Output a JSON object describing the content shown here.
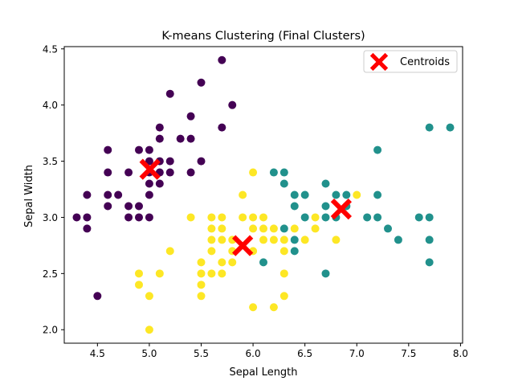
{
  "chart_data": {
    "type": "scatter",
    "title": "K-means Clustering (Final Clusters)",
    "xlabel": "Sepal Length",
    "ylabel": "Sepal Width",
    "xlim": [
      4.18,
      8.02
    ],
    "ylim": [
      1.88,
      4.52
    ],
    "xticks": [
      4.5,
      5.0,
      5.5,
      6.0,
      6.5,
      7.0,
      7.5,
      8.0
    ],
    "xtick_labels": [
      "4.5",
      "5.0",
      "5.5",
      "6.0",
      "6.5",
      "7.0",
      "7.5",
      "8.0"
    ],
    "yticks": [
      2.0,
      2.5,
      3.0,
      3.5,
      4.0,
      4.5
    ],
    "ytick_labels": [
      "2.0",
      "2.5",
      "3.0",
      "3.5",
      "4.0",
      "4.5"
    ],
    "grid": false,
    "legend": {
      "position": "top-right",
      "entries": [
        "Centroids"
      ]
    },
    "series": [
      {
        "color": "#440154",
        "points": [
          [
            4.3,
            3.0
          ],
          [
            4.4,
            2.9
          ],
          [
            4.4,
            3.0
          ],
          [
            4.4,
            3.2
          ],
          [
            4.5,
            2.3
          ],
          [
            4.6,
            3.1
          ],
          [
            4.6,
            3.2
          ],
          [
            4.6,
            3.4
          ],
          [
            4.6,
            3.6
          ],
          [
            4.7,
            3.2
          ],
          [
            4.8,
            3.0
          ],
          [
            4.8,
            3.1
          ],
          [
            4.8,
            3.4
          ],
          [
            4.9,
            3.0
          ],
          [
            4.9,
            3.1
          ],
          [
            4.9,
            3.6
          ],
          [
            5.0,
            3.0
          ],
          [
            5.0,
            3.2
          ],
          [
            5.0,
            3.3
          ],
          [
            5.0,
            3.4
          ],
          [
            5.0,
            3.5
          ],
          [
            5.0,
            3.6
          ],
          [
            5.1,
            3.3
          ],
          [
            5.1,
            3.4
          ],
          [
            5.1,
            3.5
          ],
          [
            5.1,
            3.7
          ],
          [
            5.1,
            3.8
          ],
          [
            5.2,
            3.4
          ],
          [
            5.2,
            3.5
          ],
          [
            5.2,
            4.1
          ],
          [
            5.3,
            3.7
          ],
          [
            5.4,
            3.4
          ],
          [
            5.4,
            3.7
          ],
          [
            5.4,
            3.9
          ],
          [
            5.5,
            3.5
          ],
          [
            5.5,
            4.2
          ],
          [
            5.7,
            3.8
          ],
          [
            5.7,
            4.4
          ],
          [
            5.8,
            4.0
          ]
        ]
      },
      {
        "color": "#21918c",
        "points": [
          [
            6.1,
            2.6
          ],
          [
            6.2,
            3.4
          ],
          [
            6.3,
            2.9
          ],
          [
            6.3,
            3.3
          ],
          [
            6.3,
            3.4
          ],
          [
            6.4,
            2.7
          ],
          [
            6.4,
            2.8
          ],
          [
            6.4,
            3.1
          ],
          [
            6.4,
            3.2
          ],
          [
            6.5,
            3.0
          ],
          [
            6.5,
            3.2
          ],
          [
            6.7,
            2.5
          ],
          [
            6.7,
            3.0
          ],
          [
            6.7,
            3.1
          ],
          [
            6.7,
            3.3
          ],
          [
            6.8,
            3.0
          ],
          [
            6.8,
            3.2
          ],
          [
            6.9,
            3.1
          ],
          [
            6.9,
            3.2
          ],
          [
            7.1,
            3.0
          ],
          [
            7.2,
            3.0
          ],
          [
            7.2,
            3.2
          ],
          [
            7.2,
            3.6
          ],
          [
            7.3,
            2.9
          ],
          [
            7.4,
            2.8
          ],
          [
            7.6,
            3.0
          ],
          [
            7.7,
            2.6
          ],
          [
            7.7,
            2.8
          ],
          [
            7.7,
            3.0
          ],
          [
            7.7,
            3.8
          ],
          [
            7.9,
            3.8
          ]
        ]
      },
      {
        "color": "#fde725",
        "points": [
          [
            4.9,
            2.4
          ],
          [
            4.9,
            2.5
          ],
          [
            5.0,
            2.0
          ],
          [
            5.0,
            2.3
          ],
          [
            5.1,
            2.5
          ],
          [
            5.2,
            2.7
          ],
          [
            5.4,
            3.0
          ],
          [
            5.5,
            2.3
          ],
          [
            5.5,
            2.4
          ],
          [
            5.5,
            2.5
          ],
          [
            5.5,
            2.6
          ],
          [
            5.6,
            2.5
          ],
          [
            5.6,
            2.7
          ],
          [
            5.6,
            2.8
          ],
          [
            5.6,
            2.9
          ],
          [
            5.6,
            3.0
          ],
          [
            5.7,
            2.5
          ],
          [
            5.7,
            2.6
          ],
          [
            5.7,
            2.8
          ],
          [
            5.7,
            2.9
          ],
          [
            5.7,
            3.0
          ],
          [
            5.8,
            2.6
          ],
          [
            5.8,
            2.7
          ],
          [
            5.8,
            2.8
          ],
          [
            5.9,
            3.0
          ],
          [
            5.9,
            3.2
          ],
          [
            6.0,
            2.2
          ],
          [
            6.0,
            2.7
          ],
          [
            6.0,
            2.9
          ],
          [
            6.0,
            3.0
          ],
          [
            6.0,
            3.4
          ],
          [
            6.1,
            2.8
          ],
          [
            6.1,
            2.9
          ],
          [
            6.1,
            3.0
          ],
          [
            6.2,
            2.2
          ],
          [
            6.2,
            2.8
          ],
          [
            6.2,
            2.9
          ],
          [
            6.3,
            2.3
          ],
          [
            6.3,
            2.5
          ],
          [
            6.3,
            2.7
          ],
          [
            6.3,
            2.8
          ],
          [
            6.4,
            2.9
          ],
          [
            6.5,
            2.8
          ],
          [
            6.6,
            2.9
          ],
          [
            6.6,
            3.0
          ],
          [
            6.8,
            2.8
          ],
          [
            7.0,
            3.2
          ]
        ]
      }
    ],
    "centroids": {
      "name": "Centroids",
      "color": "#ff0000",
      "marker": "X",
      "points": [
        [
          5.006,
          3.428
        ],
        [
          5.9,
          2.748
        ],
        [
          6.85,
          3.074
        ]
      ]
    }
  }
}
